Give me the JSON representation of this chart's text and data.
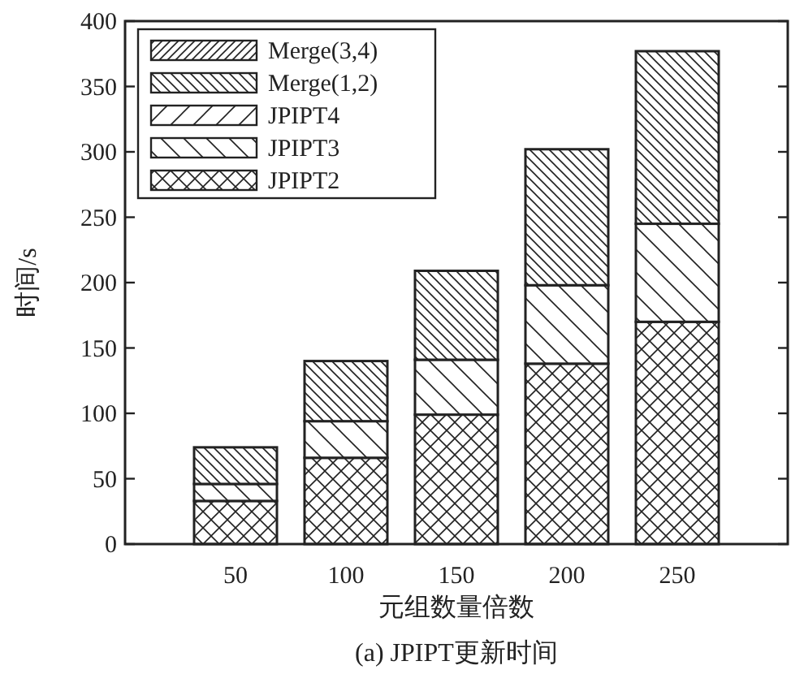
{
  "chart_data": {
    "type": "bar",
    "stacked": true,
    "title": "(a) JPIPT更新时间",
    "xlabel": "元组数量倍数",
    "ylabel": "时间/s",
    "categories": [
      "50",
      "100",
      "150",
      "200",
      "250"
    ],
    "ylim": [
      0,
      400
    ],
    "yticks": [
      0,
      50,
      100,
      150,
      200,
      250,
      300,
      350,
      400
    ],
    "grid": false,
    "legend": "top left",
    "series": [
      {
        "name": "JPIPT2",
        "color": "#222222",
        "values": [
          33,
          66,
          99,
          138,
          170
        ]
      },
      {
        "name": "JPIPT3",
        "color": "#222222",
        "values": [
          13,
          28,
          42,
          60,
          75
        ]
      },
      {
        "name": "JPIPT4",
        "color": "#222222",
        "values": [
          0,
          0,
          0,
          0,
          0
        ]
      },
      {
        "name": "Merge(1,2)",
        "color": "#222222",
        "values": [
          28,
          46,
          68,
          104,
          132
        ]
      },
      {
        "name": "Merge(3,4)",
        "color": "#222222",
        "values": [
          0,
          0,
          0,
          0,
          0
        ]
      }
    ]
  }
}
